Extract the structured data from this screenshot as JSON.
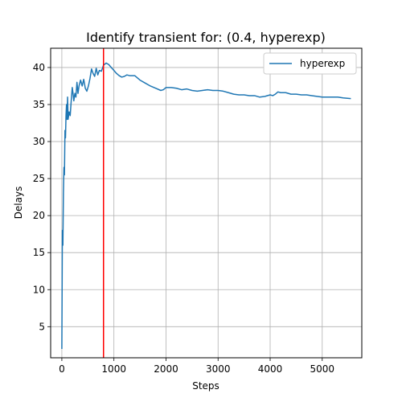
{
  "chart_data": {
    "type": "line",
    "title": "Identify transient for: (0.4, hyperexp)",
    "xlabel": "Steps",
    "ylabel": "Delays",
    "xlim": [
      -215,
      5760
    ],
    "ylim": [
      0.8,
      42.6
    ],
    "xticks": [
      0,
      1000,
      2000,
      3000,
      4000,
      5000
    ],
    "yticks": [
      5,
      10,
      15,
      20,
      25,
      30,
      35,
      40
    ],
    "grid": true,
    "legend_position": "top-right",
    "series": [
      {
        "name": "hyperexp",
        "color": "#1f77b4",
        "points": [
          [
            0,
            2.0
          ],
          [
            10,
            18.0
          ],
          [
            20,
            16.0
          ],
          [
            30,
            23.0
          ],
          [
            40,
            26.5
          ],
          [
            50,
            25.5
          ],
          [
            60,
            31.5
          ],
          [
            70,
            30.5
          ],
          [
            80,
            33.5
          ],
          [
            90,
            35.0
          ],
          [
            100,
            33.0
          ],
          [
            110,
            36.0
          ],
          [
            120,
            33.0
          ],
          [
            140,
            34.0
          ],
          [
            160,
            33.5
          ],
          [
            180,
            35.5
          ],
          [
            200,
            37.3
          ],
          [
            215,
            36.5
          ],
          [
            230,
            35.5
          ],
          [
            250,
            36.5
          ],
          [
            270,
            36.0
          ],
          [
            290,
            38.0
          ],
          [
            310,
            36.5
          ],
          [
            330,
            37.5
          ],
          [
            360,
            38.3
          ],
          [
            390,
            37.5
          ],
          [
            420,
            38.4
          ],
          [
            450,
            37.2
          ],
          [
            480,
            36.8
          ],
          [
            510,
            37.5
          ],
          [
            540,
            38.5
          ],
          [
            570,
            39.8
          ],
          [
            600,
            39.2
          ],
          [
            630,
            38.8
          ],
          [
            660,
            39.9
          ],
          [
            690,
            39.0
          ],
          [
            720,
            39.6
          ],
          [
            760,
            39.5
          ],
          [
            800,
            40.3
          ],
          [
            850,
            40.6
          ],
          [
            900,
            40.4
          ],
          [
            950,
            40.0
          ],
          [
            1000,
            39.6
          ],
          [
            1050,
            39.2
          ],
          [
            1100,
            38.9
          ],
          [
            1150,
            38.7
          ],
          [
            1200,
            38.8
          ],
          [
            1250,
            39.0
          ],
          [
            1300,
            38.9
          ],
          [
            1400,
            38.9
          ],
          [
            1500,
            38.3
          ],
          [
            1600,
            37.9
          ],
          [
            1700,
            37.5
          ],
          [
            1800,
            37.2
          ],
          [
            1900,
            36.9
          ],
          [
            1950,
            37.0
          ],
          [
            2000,
            37.3
          ],
          [
            2100,
            37.3
          ],
          [
            2200,
            37.2
          ],
          [
            2300,
            37.0
          ],
          [
            2400,
            37.1
          ],
          [
            2500,
            36.9
          ],
          [
            2600,
            36.8
          ],
          [
            2700,
            36.9
          ],
          [
            2800,
            37.0
          ],
          [
            2900,
            36.9
          ],
          [
            3000,
            36.9
          ],
          [
            3100,
            36.8
          ],
          [
            3200,
            36.6
          ],
          [
            3300,
            36.4
          ],
          [
            3400,
            36.3
          ],
          [
            3500,
            36.3
          ],
          [
            3600,
            36.2
          ],
          [
            3700,
            36.2
          ],
          [
            3800,
            36.0
          ],
          [
            3900,
            36.1
          ],
          [
            4000,
            36.3
          ],
          [
            4050,
            36.2
          ],
          [
            4100,
            36.4
          ],
          [
            4150,
            36.7
          ],
          [
            4200,
            36.6
          ],
          [
            4300,
            36.6
          ],
          [
            4400,
            36.4
          ],
          [
            4500,
            36.4
          ],
          [
            4600,
            36.3
          ],
          [
            4700,
            36.3
          ],
          [
            4800,
            36.2
          ],
          [
            4900,
            36.1
          ],
          [
            5000,
            36.0
          ],
          [
            5100,
            36.0
          ],
          [
            5200,
            36.0
          ],
          [
            5300,
            36.0
          ],
          [
            5400,
            35.9
          ],
          [
            5550,
            35.8
          ]
        ]
      }
    ],
    "vlines": [
      {
        "x": 800,
        "color": "#ff0000"
      }
    ]
  }
}
